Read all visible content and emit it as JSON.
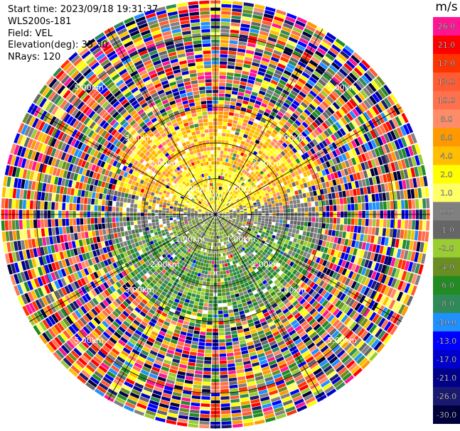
{
  "header": {
    "start_time": "Start time: 2023/09/18 19:31:37",
    "instrument": "WLS200s-181",
    "field": "Field: VEL",
    "elevation": "Elevation(deg): 35.30",
    "nrays": "NRays: 120"
  },
  "chart_data": {
    "type": "heatmap",
    "projection": "polar-ppi",
    "field": "VEL",
    "units": "m/s",
    "n_rays": 120,
    "max_range_km": 6.0,
    "range_rings_km": [
      1.0,
      2.0,
      3.0,
      5.0
    ],
    "range_ring_labels": [
      "1.00km",
      "2.00km",
      "3.00km",
      "5.00km"
    ],
    "spoke_angles_deg": [
      0,
      30,
      60,
      90,
      120,
      150,
      180,
      210,
      240,
      270,
      300,
      330
    ],
    "inner_pattern": "positive velocities (yellow/orange) toward north, negative (green) toward south, near-zero (gray) across center; noisy random colors beyond ~3 km",
    "colorbar": {
      "title": "m/s",
      "tick_labels": [
        "26.0",
        "21.0",
        "17.0",
        "13.0",
        "10.0",
        "8.0",
        "6.0",
        "4.0",
        "2.0",
        "1.0",
        "0.0",
        "-1.0",
        "-2.0",
        "-4.0",
        "-6.0",
        "-8.0",
        "-10.0",
        "-13.0",
        "-17.0",
        "-21.0",
        "-26.0",
        "-30.0"
      ],
      "colors": [
        "#ff1493",
        "#ff0000",
        "#ff3300",
        "#ff5c33",
        "#ff704d",
        "#ff8c69",
        "#ff9900",
        "#ffbf00",
        "#ffff00",
        "#ffff66",
        "#808080",
        "#666666",
        "#9acd32",
        "#6b8e23",
        "#228b22",
        "#2e8b57",
        "#1e90ff",
        "#0000ff",
        "#0000cd",
        "#00008b",
        "#191970",
        "#00003c"
      ]
    }
  }
}
